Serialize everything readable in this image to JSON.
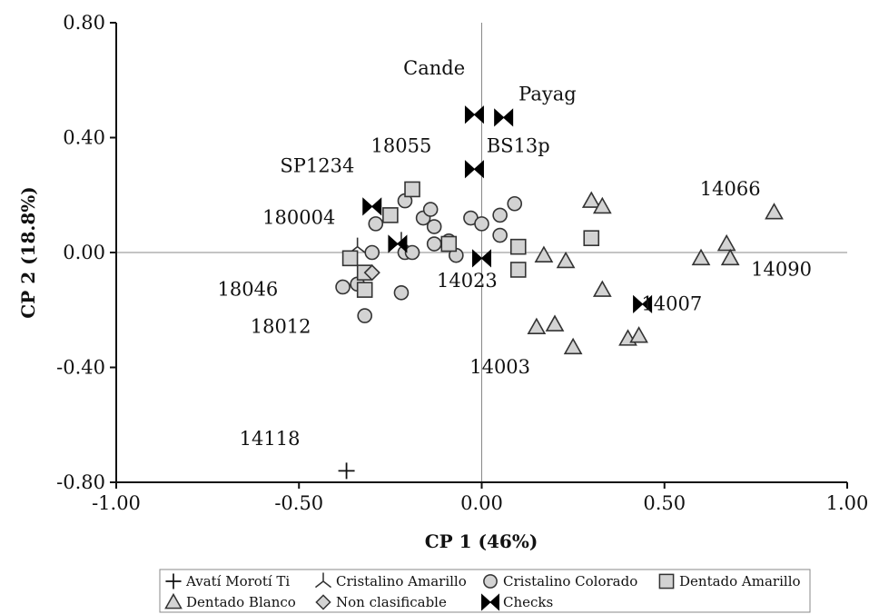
{
  "chart_data": {
    "type": "scatter",
    "xlabel": "CP 1 (46%)",
    "ylabel": "CP 2 (18.8%)",
    "xlim": [
      -1.0,
      1.0
    ],
    "ylim": [
      -0.8,
      0.8
    ],
    "x_ticks": [
      "-1.00",
      "-0.50",
      "0.00",
      "0.50",
      "1.00"
    ],
    "y_ticks": [
      "0.80",
      "0.40",
      "0.00",
      "-0.40",
      "-0.80"
    ],
    "legend_position": "bottom",
    "colors": {
      "marker_fill": "#d3d3d3",
      "marker_stroke": "#333333",
      "checks": "#000000"
    },
    "series": [
      {
        "name": "Avatí Morotí Ti",
        "marker": "plus",
        "points": [
          [
            -0.37,
            -0.76
          ]
        ]
      },
      {
        "name": "Cristalino Amarillo",
        "marker": "tri-star",
        "points": [
          [
            -0.34,
            0.02
          ],
          [
            -0.22,
            0.04
          ]
        ]
      },
      {
        "name": "Cristalino Colorado",
        "marker": "circle",
        "points": [
          [
            -0.29,
            0.1
          ],
          [
            -0.21,
            0.18
          ],
          [
            -0.16,
            0.12
          ],
          [
            -0.14,
            0.15
          ],
          [
            -0.13,
            0.09
          ],
          [
            -0.03,
            0.12
          ],
          [
            0.0,
            0.1
          ],
          [
            0.05,
            0.13
          ],
          [
            0.09,
            0.17
          ],
          [
            -0.3,
            0.0
          ],
          [
            -0.21,
            0.0
          ],
          [
            -0.19,
            0.0
          ],
          [
            -0.13,
            0.03
          ],
          [
            -0.09,
            0.04
          ],
          [
            -0.07,
            -0.01
          ],
          [
            0.05,
            0.06
          ],
          [
            -0.38,
            -0.12
          ],
          [
            -0.34,
            -0.11
          ],
          [
            -0.22,
            -0.14
          ],
          [
            -0.32,
            -0.22
          ]
        ]
      },
      {
        "name": "Dentado Amarillo",
        "marker": "square",
        "points": [
          [
            -0.19,
            0.22
          ],
          [
            -0.25,
            0.13
          ],
          [
            -0.36,
            -0.02
          ],
          [
            -0.32,
            -0.07
          ],
          [
            -0.32,
            -0.13
          ],
          [
            -0.09,
            0.03
          ],
          [
            0.1,
            0.02
          ],
          [
            0.1,
            -0.06
          ],
          [
            0.3,
            0.05
          ]
        ]
      },
      {
        "name": "Dentado Blanco",
        "marker": "triangle",
        "points": [
          [
            0.3,
            0.18
          ],
          [
            0.33,
            0.16
          ],
          [
            0.17,
            -0.01
          ],
          [
            0.23,
            -0.03
          ],
          [
            0.33,
            -0.13
          ],
          [
            0.15,
            -0.26
          ],
          [
            0.2,
            -0.25
          ],
          [
            0.25,
            -0.33
          ],
          [
            0.4,
            -0.3
          ],
          [
            0.43,
            -0.29
          ],
          [
            0.6,
            -0.02
          ],
          [
            0.67,
            0.03
          ],
          [
            0.68,
            -0.02
          ],
          [
            0.8,
            0.14
          ]
        ]
      },
      {
        "name": "Non clasificable",
        "marker": "diamond",
        "points": [
          [
            -0.3,
            -0.07
          ]
        ]
      },
      {
        "name": "Checks",
        "marker": "bowtie",
        "points": [
          [
            -0.02,
            0.48
          ],
          [
            0.06,
            0.47
          ],
          [
            -0.02,
            0.29
          ],
          [
            -0.3,
            0.16
          ],
          [
            -0.23,
            0.03
          ],
          [
            0.0,
            -0.02
          ],
          [
            0.44,
            -0.18
          ]
        ]
      }
    ],
    "annotations": [
      {
        "text": "Cande",
        "x": -0.13,
        "y": 0.62
      },
      {
        "text": "Payag",
        "x": 0.18,
        "y": 0.53
      },
      {
        "text": "BS13p",
        "x": 0.1,
        "y": 0.35
      },
      {
        "text": "18055",
        "x": -0.22,
        "y": 0.35
      },
      {
        "text": "SP1234",
        "x": -0.45,
        "y": 0.28
      },
      {
        "text": "14066",
        "x": 0.68,
        "y": 0.2
      },
      {
        "text": "180004",
        "x": -0.5,
        "y": 0.1
      },
      {
        "text": "14090",
        "x": 0.82,
        "y": -0.08
      },
      {
        "text": "18046",
        "x": -0.64,
        "y": -0.15
      },
      {
        "text": "14023",
        "x": -0.04,
        "y": -0.12
      },
      {
        "text": "14007",
        "x": 0.52,
        "y": -0.2
      },
      {
        "text": "18012",
        "x": -0.55,
        "y": -0.28
      },
      {
        "text": "14003",
        "x": 0.05,
        "y": -0.42
      },
      {
        "text": "14118",
        "x": -0.58,
        "y": -0.67
      }
    ]
  }
}
